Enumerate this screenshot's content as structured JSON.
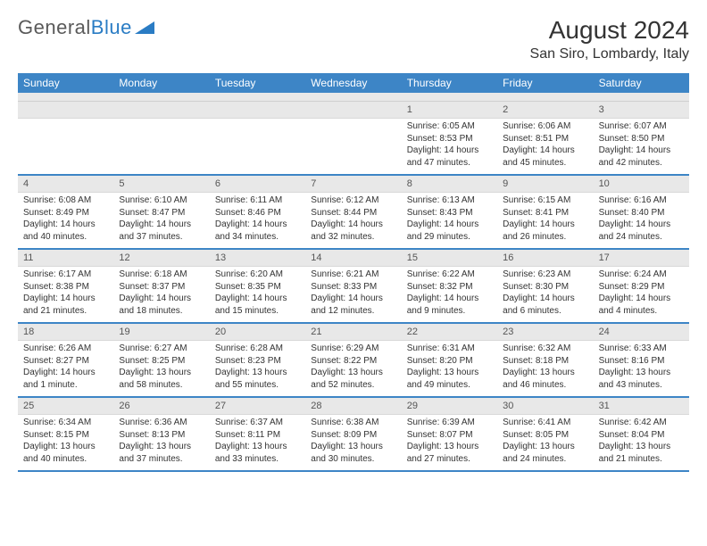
{
  "logo": {
    "text1": "General",
    "text2": "Blue"
  },
  "title": "August 2024",
  "location": "San Siro, Lombardy, Italy",
  "colors": {
    "header_bg": "#3d85c6",
    "header_fg": "#ffffff",
    "daynum_bg": "#e8e8e8",
    "accent": "#3d85c6"
  },
  "day_headers": [
    "Sunday",
    "Monday",
    "Tuesday",
    "Wednesday",
    "Thursday",
    "Friday",
    "Saturday"
  ],
  "weeks": [
    [
      {
        "n": "",
        "sunrise": "",
        "sunset": "",
        "daylight": ""
      },
      {
        "n": "",
        "sunrise": "",
        "sunset": "",
        "daylight": ""
      },
      {
        "n": "",
        "sunrise": "",
        "sunset": "",
        "daylight": ""
      },
      {
        "n": "",
        "sunrise": "",
        "sunset": "",
        "daylight": ""
      },
      {
        "n": "1",
        "sunrise": "Sunrise: 6:05 AM",
        "sunset": "Sunset: 8:53 PM",
        "daylight": "Daylight: 14 hours and 47 minutes."
      },
      {
        "n": "2",
        "sunrise": "Sunrise: 6:06 AM",
        "sunset": "Sunset: 8:51 PM",
        "daylight": "Daylight: 14 hours and 45 minutes."
      },
      {
        "n": "3",
        "sunrise": "Sunrise: 6:07 AM",
        "sunset": "Sunset: 8:50 PM",
        "daylight": "Daylight: 14 hours and 42 minutes."
      }
    ],
    [
      {
        "n": "4",
        "sunrise": "Sunrise: 6:08 AM",
        "sunset": "Sunset: 8:49 PM",
        "daylight": "Daylight: 14 hours and 40 minutes."
      },
      {
        "n": "5",
        "sunrise": "Sunrise: 6:10 AM",
        "sunset": "Sunset: 8:47 PM",
        "daylight": "Daylight: 14 hours and 37 minutes."
      },
      {
        "n": "6",
        "sunrise": "Sunrise: 6:11 AM",
        "sunset": "Sunset: 8:46 PM",
        "daylight": "Daylight: 14 hours and 34 minutes."
      },
      {
        "n": "7",
        "sunrise": "Sunrise: 6:12 AM",
        "sunset": "Sunset: 8:44 PM",
        "daylight": "Daylight: 14 hours and 32 minutes."
      },
      {
        "n": "8",
        "sunrise": "Sunrise: 6:13 AM",
        "sunset": "Sunset: 8:43 PM",
        "daylight": "Daylight: 14 hours and 29 minutes."
      },
      {
        "n": "9",
        "sunrise": "Sunrise: 6:15 AM",
        "sunset": "Sunset: 8:41 PM",
        "daylight": "Daylight: 14 hours and 26 minutes."
      },
      {
        "n": "10",
        "sunrise": "Sunrise: 6:16 AM",
        "sunset": "Sunset: 8:40 PM",
        "daylight": "Daylight: 14 hours and 24 minutes."
      }
    ],
    [
      {
        "n": "11",
        "sunrise": "Sunrise: 6:17 AM",
        "sunset": "Sunset: 8:38 PM",
        "daylight": "Daylight: 14 hours and 21 minutes."
      },
      {
        "n": "12",
        "sunrise": "Sunrise: 6:18 AM",
        "sunset": "Sunset: 8:37 PM",
        "daylight": "Daylight: 14 hours and 18 minutes."
      },
      {
        "n": "13",
        "sunrise": "Sunrise: 6:20 AM",
        "sunset": "Sunset: 8:35 PM",
        "daylight": "Daylight: 14 hours and 15 minutes."
      },
      {
        "n": "14",
        "sunrise": "Sunrise: 6:21 AM",
        "sunset": "Sunset: 8:33 PM",
        "daylight": "Daylight: 14 hours and 12 minutes."
      },
      {
        "n": "15",
        "sunrise": "Sunrise: 6:22 AM",
        "sunset": "Sunset: 8:32 PM",
        "daylight": "Daylight: 14 hours and 9 minutes."
      },
      {
        "n": "16",
        "sunrise": "Sunrise: 6:23 AM",
        "sunset": "Sunset: 8:30 PM",
        "daylight": "Daylight: 14 hours and 6 minutes."
      },
      {
        "n": "17",
        "sunrise": "Sunrise: 6:24 AM",
        "sunset": "Sunset: 8:29 PM",
        "daylight": "Daylight: 14 hours and 4 minutes."
      }
    ],
    [
      {
        "n": "18",
        "sunrise": "Sunrise: 6:26 AM",
        "sunset": "Sunset: 8:27 PM",
        "daylight": "Daylight: 14 hours and 1 minute."
      },
      {
        "n": "19",
        "sunrise": "Sunrise: 6:27 AM",
        "sunset": "Sunset: 8:25 PM",
        "daylight": "Daylight: 13 hours and 58 minutes."
      },
      {
        "n": "20",
        "sunrise": "Sunrise: 6:28 AM",
        "sunset": "Sunset: 8:23 PM",
        "daylight": "Daylight: 13 hours and 55 minutes."
      },
      {
        "n": "21",
        "sunrise": "Sunrise: 6:29 AM",
        "sunset": "Sunset: 8:22 PM",
        "daylight": "Daylight: 13 hours and 52 minutes."
      },
      {
        "n": "22",
        "sunrise": "Sunrise: 6:31 AM",
        "sunset": "Sunset: 8:20 PM",
        "daylight": "Daylight: 13 hours and 49 minutes."
      },
      {
        "n": "23",
        "sunrise": "Sunrise: 6:32 AM",
        "sunset": "Sunset: 8:18 PM",
        "daylight": "Daylight: 13 hours and 46 minutes."
      },
      {
        "n": "24",
        "sunrise": "Sunrise: 6:33 AM",
        "sunset": "Sunset: 8:16 PM",
        "daylight": "Daylight: 13 hours and 43 minutes."
      }
    ],
    [
      {
        "n": "25",
        "sunrise": "Sunrise: 6:34 AM",
        "sunset": "Sunset: 8:15 PM",
        "daylight": "Daylight: 13 hours and 40 minutes."
      },
      {
        "n": "26",
        "sunrise": "Sunrise: 6:36 AM",
        "sunset": "Sunset: 8:13 PM",
        "daylight": "Daylight: 13 hours and 37 minutes."
      },
      {
        "n": "27",
        "sunrise": "Sunrise: 6:37 AM",
        "sunset": "Sunset: 8:11 PM",
        "daylight": "Daylight: 13 hours and 33 minutes."
      },
      {
        "n": "28",
        "sunrise": "Sunrise: 6:38 AM",
        "sunset": "Sunset: 8:09 PM",
        "daylight": "Daylight: 13 hours and 30 minutes."
      },
      {
        "n": "29",
        "sunrise": "Sunrise: 6:39 AM",
        "sunset": "Sunset: 8:07 PM",
        "daylight": "Daylight: 13 hours and 27 minutes."
      },
      {
        "n": "30",
        "sunrise": "Sunrise: 6:41 AM",
        "sunset": "Sunset: 8:05 PM",
        "daylight": "Daylight: 13 hours and 24 minutes."
      },
      {
        "n": "31",
        "sunrise": "Sunrise: 6:42 AM",
        "sunset": "Sunset: 8:04 PM",
        "daylight": "Daylight: 13 hours and 21 minutes."
      }
    ]
  ]
}
